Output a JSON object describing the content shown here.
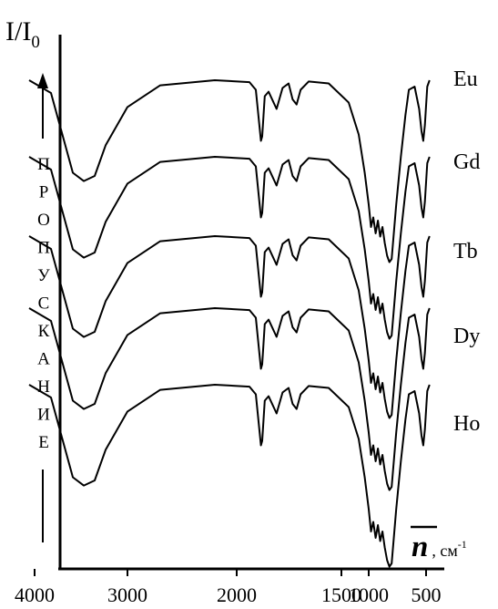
{
  "chart_data": {
    "type": "line",
    "title": "",
    "ylabel": "I/I",
    "ylabel_sub": "0",
    "xlabel_symbol": "n",
    "xlabel_unit": ", см",
    "xlabel_unit_sup": "-1",
    "side_caption": [
      "П",
      "Р",
      "О",
      "П",
      "У",
      "С",
      "К",
      "А",
      "Н",
      "И",
      "Е"
    ],
    "x_axis": {
      "reversed": true,
      "ticks": [
        {
          "value": 4000,
          "label": "4000"
        },
        {
          "value": 3000,
          "label": "3000"
        },
        {
          "value": 2000,
          "label": "2000"
        },
        {
          "value": 1500,
          "label": "1500"
        },
        {
          "value": 1000,
          "label": "1000"
        },
        {
          "value": 500,
          "label": "500"
        }
      ]
    },
    "grid": false,
    "legend": "right, one label per curve",
    "series": [
      {
        "name": "Eu",
        "points": [
          [
            3900,
            0.0
          ],
          [
            3700,
            0.2
          ],
          [
            3500,
            1.45
          ],
          [
            3400,
            1.58
          ],
          [
            3300,
            1.5
          ],
          [
            3200,
            1.02
          ],
          [
            3000,
            0.42
          ],
          [
            2700,
            0.08
          ],
          [
            2200,
            0.0
          ],
          [
            1800,
            0.03
          ],
          [
            1700,
            0.15
          ],
          [
            1640,
            0.75
          ],
          [
            1620,
            0.95
          ],
          [
            1600,
            0.88
          ],
          [
            1560,
            0.25
          ],
          [
            1500,
            0.18
          ],
          [
            1460,
            0.45
          ],
          [
            1430,
            0.12
          ],
          [
            1400,
            0.05
          ],
          [
            1380,
            0.3
          ],
          [
            1360,
            0.38
          ],
          [
            1340,
            0.15
          ],
          [
            1300,
            0.02
          ],
          [
            1200,
            0.05
          ],
          [
            1100,
            0.35
          ],
          [
            1050,
            0.85
          ],
          [
            1020,
            1.45
          ],
          [
            1000,
            1.95
          ],
          [
            980,
            2.3
          ],
          [
            960,
            2.15
          ],
          [
            940,
            2.4
          ],
          [
            920,
            2.2
          ],
          [
            900,
            2.45
          ],
          [
            880,
            2.3
          ],
          [
            860,
            2.55
          ],
          [
            840,
            2.75
          ],
          [
            820,
            2.85
          ],
          [
            800,
            2.8
          ],
          [
            760,
            1.95
          ],
          [
            720,
            1.2
          ],
          [
            680,
            0.55
          ],
          [
            650,
            0.15
          ],
          [
            600,
            0.1
          ],
          [
            560,
            0.45
          ],
          [
            540,
            0.8
          ],
          [
            525,
            0.95
          ],
          [
            510,
            0.7
          ],
          [
            490,
            0.1
          ],
          [
            470,
            0.0
          ]
        ]
      },
      {
        "name": "Gd",
        "points": [
          [
            3900,
            0.0
          ],
          [
            3700,
            0.2
          ],
          [
            3500,
            1.45
          ],
          [
            3400,
            1.58
          ],
          [
            3300,
            1.5
          ],
          [
            3200,
            1.02
          ],
          [
            3000,
            0.42
          ],
          [
            2700,
            0.08
          ],
          [
            2200,
            0.0
          ],
          [
            1800,
            0.03
          ],
          [
            1700,
            0.15
          ],
          [
            1640,
            0.75
          ],
          [
            1620,
            0.95
          ],
          [
            1600,
            0.88
          ],
          [
            1560,
            0.25
          ],
          [
            1500,
            0.18
          ],
          [
            1460,
            0.45
          ],
          [
            1430,
            0.12
          ],
          [
            1400,
            0.05
          ],
          [
            1380,
            0.3
          ],
          [
            1360,
            0.38
          ],
          [
            1340,
            0.15
          ],
          [
            1300,
            0.02
          ],
          [
            1200,
            0.05
          ],
          [
            1100,
            0.35
          ],
          [
            1050,
            0.85
          ],
          [
            1020,
            1.45
          ],
          [
            1000,
            1.95
          ],
          [
            980,
            2.3
          ],
          [
            960,
            2.15
          ],
          [
            940,
            2.4
          ],
          [
            920,
            2.2
          ],
          [
            900,
            2.45
          ],
          [
            880,
            2.3
          ],
          [
            860,
            2.55
          ],
          [
            840,
            2.75
          ],
          [
            820,
            2.85
          ],
          [
            800,
            2.8
          ],
          [
            760,
            1.95
          ],
          [
            720,
            1.2
          ],
          [
            680,
            0.55
          ],
          [
            650,
            0.15
          ],
          [
            600,
            0.1
          ],
          [
            560,
            0.45
          ],
          [
            540,
            0.8
          ],
          [
            525,
            0.95
          ],
          [
            510,
            0.7
          ],
          [
            490,
            0.1
          ],
          [
            470,
            0.0
          ]
        ]
      },
      {
        "name": "Tb",
        "points": [
          [
            3900,
            0.0
          ],
          [
            3700,
            0.2
          ],
          [
            3500,
            1.45
          ],
          [
            3400,
            1.58
          ],
          [
            3300,
            1.5
          ],
          [
            3200,
            1.02
          ],
          [
            3000,
            0.42
          ],
          [
            2700,
            0.08
          ],
          [
            2200,
            0.0
          ],
          [
            1800,
            0.03
          ],
          [
            1700,
            0.15
          ],
          [
            1640,
            0.75
          ],
          [
            1620,
            0.95
          ],
          [
            1600,
            0.88
          ],
          [
            1560,
            0.25
          ],
          [
            1500,
            0.18
          ],
          [
            1460,
            0.45
          ],
          [
            1430,
            0.12
          ],
          [
            1400,
            0.05
          ],
          [
            1380,
            0.3
          ],
          [
            1360,
            0.38
          ],
          [
            1340,
            0.15
          ],
          [
            1300,
            0.02
          ],
          [
            1200,
            0.05
          ],
          [
            1100,
            0.35
          ],
          [
            1050,
            0.85
          ],
          [
            1020,
            1.45
          ],
          [
            1000,
            1.95
          ],
          [
            980,
            2.3
          ],
          [
            960,
            2.15
          ],
          [
            940,
            2.4
          ],
          [
            920,
            2.2
          ],
          [
            900,
            2.45
          ],
          [
            880,
            2.3
          ],
          [
            860,
            2.55
          ],
          [
            840,
            2.75
          ],
          [
            820,
            2.85
          ],
          [
            800,
            2.8
          ],
          [
            760,
            1.95
          ],
          [
            720,
            1.2
          ],
          [
            680,
            0.55
          ],
          [
            650,
            0.15
          ],
          [
            600,
            0.1
          ],
          [
            560,
            0.45
          ],
          [
            540,
            0.8
          ],
          [
            525,
            0.95
          ],
          [
            510,
            0.7
          ],
          [
            490,
            0.1
          ],
          [
            470,
            0.0
          ]
        ]
      },
      {
        "name": "Dy",
        "points": [
          [
            3900,
            0.0
          ],
          [
            3700,
            0.2
          ],
          [
            3500,
            1.45
          ],
          [
            3400,
            1.58
          ],
          [
            3300,
            1.5
          ],
          [
            3200,
            1.02
          ],
          [
            3000,
            0.42
          ],
          [
            2700,
            0.08
          ],
          [
            2200,
            0.0
          ],
          [
            1800,
            0.03
          ],
          [
            1700,
            0.15
          ],
          [
            1640,
            0.75
          ],
          [
            1620,
            0.95
          ],
          [
            1600,
            0.88
          ],
          [
            1560,
            0.25
          ],
          [
            1500,
            0.18
          ],
          [
            1460,
            0.45
          ],
          [
            1430,
            0.12
          ],
          [
            1400,
            0.05
          ],
          [
            1380,
            0.3
          ],
          [
            1360,
            0.38
          ],
          [
            1340,
            0.15
          ],
          [
            1300,
            0.02
          ],
          [
            1200,
            0.05
          ],
          [
            1100,
            0.35
          ],
          [
            1050,
            0.85
          ],
          [
            1020,
            1.45
          ],
          [
            1000,
            1.95
          ],
          [
            980,
            2.3
          ],
          [
            960,
            2.15
          ],
          [
            940,
            2.4
          ],
          [
            920,
            2.2
          ],
          [
            900,
            2.45
          ],
          [
            880,
            2.3
          ],
          [
            860,
            2.55
          ],
          [
            840,
            2.75
          ],
          [
            820,
            2.85
          ],
          [
            800,
            2.8
          ],
          [
            760,
            1.95
          ],
          [
            720,
            1.2
          ],
          [
            680,
            0.55
          ],
          [
            650,
            0.15
          ],
          [
            600,
            0.1
          ],
          [
            560,
            0.45
          ],
          [
            540,
            0.8
          ],
          [
            525,
            0.95
          ],
          [
            510,
            0.7
          ],
          [
            490,
            0.1
          ],
          [
            470,
            0.0
          ]
        ]
      },
      {
        "name": "Ho",
        "points": [
          [
            3900,
            0.0
          ],
          [
            3700,
            0.2
          ],
          [
            3500,
            1.45
          ],
          [
            3400,
            1.58
          ],
          [
            3300,
            1.5
          ],
          [
            3200,
            1.02
          ],
          [
            3000,
            0.42
          ],
          [
            2700,
            0.08
          ],
          [
            2200,
            0.0
          ],
          [
            1800,
            0.03
          ],
          [
            1700,
            0.15
          ],
          [
            1640,
            0.75
          ],
          [
            1620,
            0.95
          ],
          [
            1600,
            0.88
          ],
          [
            1560,
            0.25
          ],
          [
            1500,
            0.18
          ],
          [
            1460,
            0.45
          ],
          [
            1430,
            0.12
          ],
          [
            1400,
            0.05
          ],
          [
            1380,
            0.3
          ],
          [
            1360,
            0.38
          ],
          [
            1340,
            0.15
          ],
          [
            1300,
            0.02
          ],
          [
            1200,
            0.05
          ],
          [
            1100,
            0.35
          ],
          [
            1050,
            0.85
          ],
          [
            1020,
            1.45
          ],
          [
            1000,
            1.95
          ],
          [
            980,
            2.3
          ],
          [
            960,
            2.15
          ],
          [
            940,
            2.4
          ],
          [
            920,
            2.2
          ],
          [
            900,
            2.45
          ],
          [
            880,
            2.3
          ],
          [
            860,
            2.55
          ],
          [
            840,
            2.75
          ],
          [
            820,
            2.85
          ],
          [
            800,
            2.8
          ],
          [
            760,
            1.95
          ],
          [
            720,
            1.2
          ],
          [
            680,
            0.55
          ],
          [
            650,
            0.15
          ],
          [
            600,
            0.1
          ],
          [
            560,
            0.45
          ],
          [
            540,
            0.8
          ],
          [
            525,
            0.95
          ],
          [
            510,
            0.7
          ],
          [
            490,
            0.1
          ],
          [
            470,
            0.0
          ]
        ]
      }
    ]
  }
}
